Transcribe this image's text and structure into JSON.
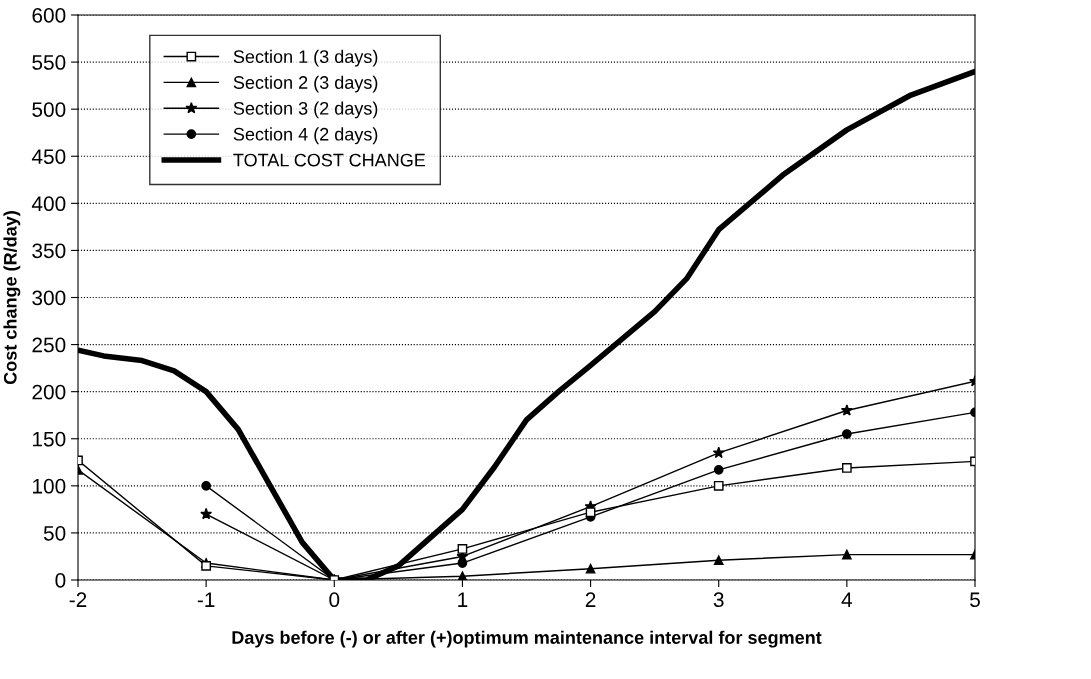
{
  "chart_data": {
    "type": "line",
    "xlabel": "Days before (-) or after (+)optimum maintenance interval for segment",
    "ylabel": "Cost change (R/day)",
    "xlim": [
      -2,
      5
    ],
    "xticks": [
      -2,
      -1,
      0,
      1,
      2,
      3,
      4,
      5
    ],
    "ylim": [
      0,
      600
    ],
    "yticks": [
      0,
      50,
      100,
      150,
      200,
      250,
      300,
      350,
      400,
      450,
      500,
      550,
      600
    ],
    "grid": "y",
    "legend": "top left",
    "series": [
      {
        "name": "Section 1 (3 days)",
        "color": "#000000",
        "marker": "square",
        "x": [
          -2,
          -1,
          0,
          1,
          2,
          3,
          4,
          5
        ],
        "values": [
          127,
          15,
          0,
          33,
          72,
          100,
          119,
          126
        ]
      },
      {
        "name": "Section 2 (3 days)",
        "color": "#000000",
        "marker": "triangle",
        "x": [
          -2,
          -1,
          0,
          1,
          2,
          3,
          4,
          5
        ],
        "values": [
          117,
          18,
          0,
          4,
          12,
          21,
          27,
          27
        ]
      },
      {
        "name": "Section 3 (2 days)",
        "color": "#000000",
        "marker": "star",
        "x": [
          -1,
          0,
          1,
          2,
          3,
          4,
          5
        ],
        "values": [
          70,
          0,
          25,
          78,
          135,
          180,
          211
        ]
      },
      {
        "name": "Section 4 (2 days)",
        "color": "#000000",
        "marker": "circle",
        "x": [
          -1,
          0,
          1,
          2,
          3,
          4,
          5
        ],
        "values": [
          100,
          0,
          18,
          67,
          117,
          155,
          178
        ]
      },
      {
        "name": "TOTAL COST CHANGE",
        "color": "#000000",
        "marker": "none",
        "x": [
          -2,
          -1.8,
          -1.5,
          -1.25,
          -1,
          -0.75,
          -0.5,
          -0.25,
          0,
          0.25,
          0.5,
          0.75,
          1,
          1.25,
          1.5,
          1.75,
          2,
          2.5,
          2.75,
          3,
          3.5,
          4,
          4.5,
          5
        ],
        "values": [
          244,
          238,
          233,
          222,
          200,
          160,
          100,
          40,
          0,
          0,
          15,
          45,
          75,
          120,
          170,
          200,
          228,
          285,
          320,
          372,
          430,
          478,
          515,
          540
        ]
      }
    ]
  }
}
